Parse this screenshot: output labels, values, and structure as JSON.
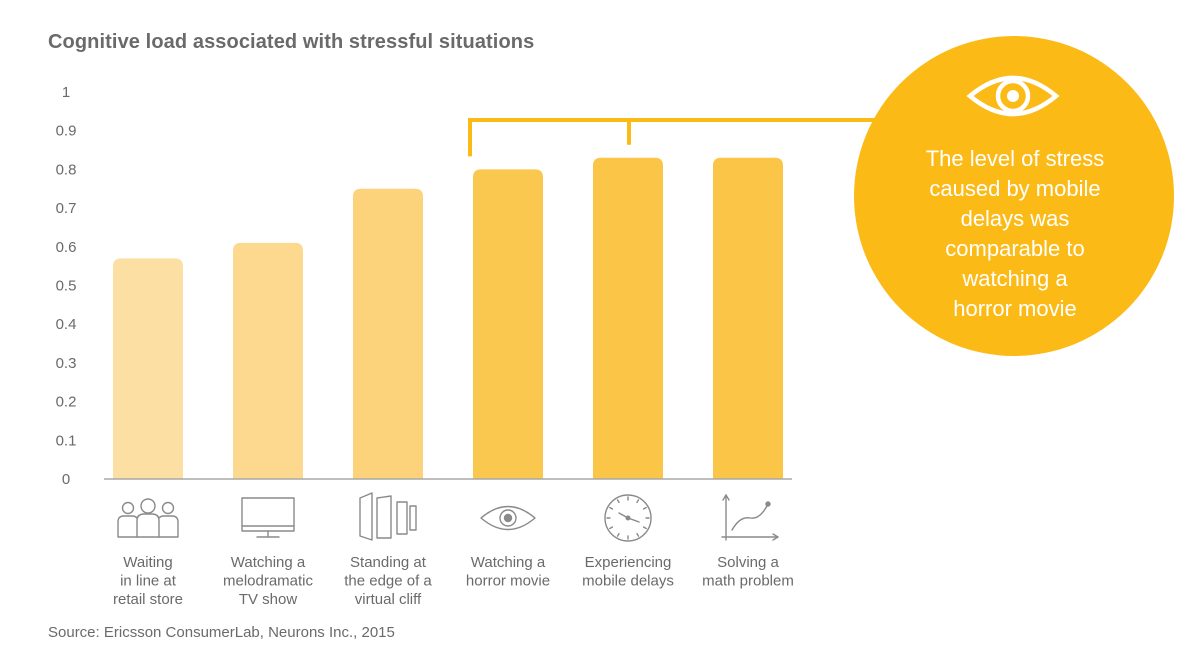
{
  "chart_data": {
    "type": "bar",
    "title": "Cognitive load associated with stressful situations",
    "categories": [
      [
        "Waiting",
        "in line at",
        "retail store"
      ],
      [
        "Watching a",
        "melodramatic",
        "TV show"
      ],
      [
        "Standing at",
        "the edge of a",
        "virtual cliff"
      ],
      [
        "Watching a",
        "horror movie"
      ],
      [
        "Experiencing",
        "mobile delays"
      ],
      [
        "Solving a",
        "math problem"
      ]
    ],
    "category_icons": [
      "people-group-icon",
      "tv-icon",
      "cliff-panels-icon",
      "eye-icon",
      "clock-icon",
      "graph-icon"
    ],
    "values": [
      0.57,
      0.61,
      0.75,
      0.8,
      0.83,
      0.83
    ],
    "bar_colors": [
      "#FCE0A3",
      "#FCD98F",
      "#FCD27A",
      "#FBC84F",
      "#FBC547",
      "#FBC547"
    ],
    "y_ticks": [
      "0",
      "0.1",
      "0.2",
      "0.3",
      "0.4",
      "0.5",
      "0.6",
      "0.7",
      "0.8",
      "0.9",
      "1"
    ],
    "ylim": [
      0,
      1
    ],
    "xlabel": "",
    "ylabel": "",
    "grid": false,
    "callout": {
      "lines": [
        "The level of stress",
        "caused by mobile",
        "delays was",
        "comparable to",
        "watching a",
        "horror movie"
      ],
      "icon": "eye-icon",
      "color": "#FBBA16",
      "links_categories": [
        3,
        4
      ]
    },
    "source": "Source: Ericsson ConsumerLab, Neurons Inc., 2015"
  }
}
